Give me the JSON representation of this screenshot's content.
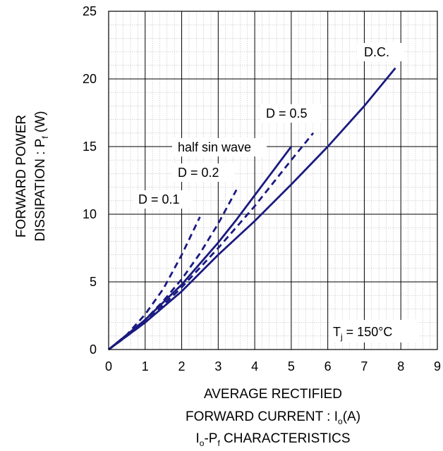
{
  "chart_data": {
    "type": "line",
    "xlim": [
      0,
      9
    ],
    "ylim": [
      0,
      25
    ],
    "x_ticks": [
      "0",
      "1",
      "2",
      "3",
      "4",
      "5",
      "6",
      "7",
      "8",
      "9"
    ],
    "y_ticks": [
      "0",
      "5",
      "10",
      "15",
      "20",
      "25"
    ],
    "grid": true,
    "minor_grid": true,
    "ylabel": {
      "line1": "FORWARD POWER",
      "line2_prefix": "DISSIPATION : P",
      "line2_sub": "f",
      "line2_suffix": " (W)"
    },
    "xlabel": {
      "line1": "AVERAGE RECTIFIED",
      "line2_prefix": "FORWARD CURRENT : I",
      "line2_sub": "o",
      "line2_suffix": "(A)"
    },
    "caption": {
      "prefix": "I",
      "sub1": "o",
      "mid": "-P",
      "sub2": "f",
      "suffix": " CHARACTERISTICS"
    },
    "condition": {
      "prefix": "T",
      "sub": "j",
      "suffix": " = 150°C"
    },
    "line_color": "#1a1a80",
    "series": [
      {
        "name": "D = 0.1",
        "style": "dashed",
        "x": [
          0,
          0.5,
          1.0,
          1.5,
          2.0,
          2.5
        ],
        "y": [
          0,
          1.1,
          2.6,
          4.5,
          7.0,
          9.8
        ]
      },
      {
        "name": "D = 0.2",
        "style": "dashed",
        "x": [
          0,
          0.5,
          1.0,
          1.5,
          2.0,
          2.5,
          3.0,
          3.5
        ],
        "y": [
          0,
          1.0,
          2.2,
          3.6,
          5.2,
          7.1,
          9.3,
          11.8
        ]
      },
      {
        "name": "D = 0.5",
        "style": "dashed",
        "x": [
          0,
          1.0,
          2.0,
          3.0,
          4.0,
          5.0,
          5.6
        ],
        "y": [
          0,
          2.0,
          4.6,
          7.5,
          10.6,
          14.0,
          16.0
        ]
      },
      {
        "name": "half sin wave",
        "style": "solid",
        "x": [
          0,
          1.0,
          2.0,
          3.0,
          3.5,
          4.0,
          5.0
        ],
        "y": [
          0,
          2.2,
          4.8,
          7.9,
          9.6,
          11.4,
          15.0
        ]
      },
      {
        "name": "D.C.",
        "style": "solid",
        "x": [
          0,
          1.0,
          2.0,
          3.0,
          4.0,
          5.0,
          6.0,
          7.0,
          7.85
        ],
        "y": [
          0,
          2.0,
          4.3,
          7.0,
          9.5,
          12.2,
          15.0,
          18.0,
          20.8
        ]
      }
    ]
  }
}
